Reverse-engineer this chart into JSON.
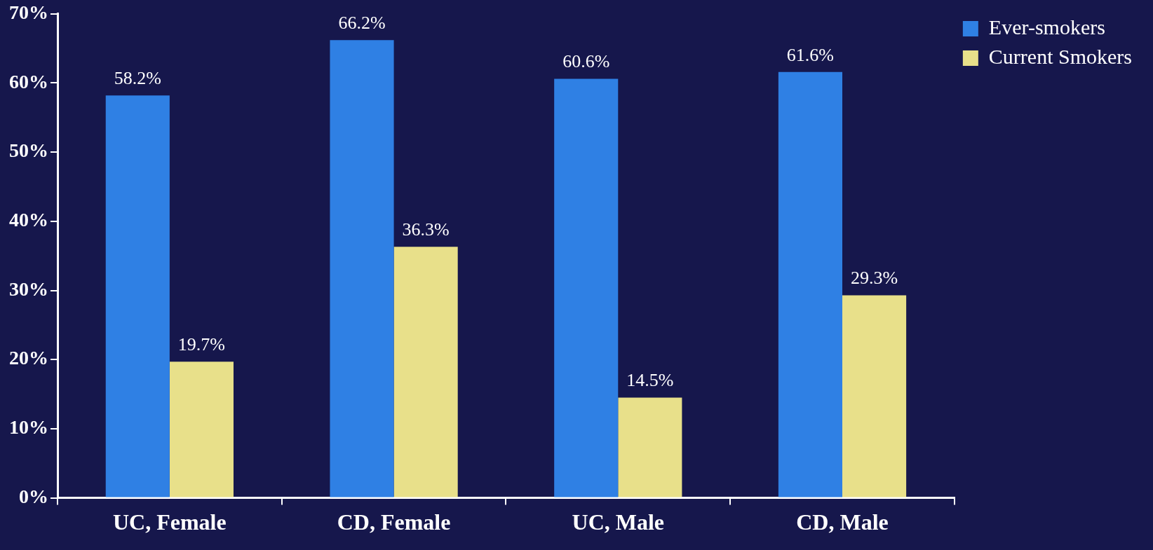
{
  "chart_data": {
    "type": "bar",
    "categories": [
      "UC, Female",
      "CD, Female",
      "UC, Male",
      "CD, Male"
    ],
    "series": [
      {
        "name": "Ever-smokers",
        "color": "#2f80e4",
        "values": [
          58.2,
          66.2,
          60.6,
          61.6
        ],
        "value_labels": [
          "58.2%",
          "66.2%",
          "60.6%",
          "61.6%"
        ]
      },
      {
        "name": "Current Smokers",
        "color": "#e8e08a",
        "values": [
          19.7,
          36.3,
          14.5,
          29.3
        ],
        "value_labels": [
          "19.7%",
          "36.3%",
          "14.5%",
          "29.3%"
        ]
      }
    ],
    "ylim": [
      0,
      70
    ],
    "yticks": [
      {
        "value": 0,
        "label": "0%"
      },
      {
        "value": 10,
        "label": "10%"
      },
      {
        "value": 20,
        "label": "20%"
      },
      {
        "value": 30,
        "label": "30%"
      },
      {
        "value": 40,
        "label": "40%"
      },
      {
        "value": 50,
        "label": "50%"
      },
      {
        "value": 60,
        "label": "60%"
      },
      {
        "value": 70,
        "label": "70%"
      }
    ],
    "grid": false,
    "legend": "top right"
  }
}
